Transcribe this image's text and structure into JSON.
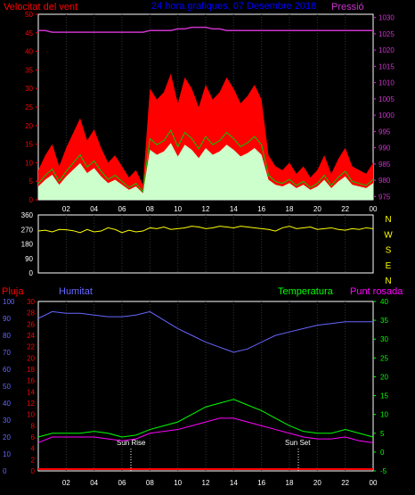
{
  "colors": {
    "wind_speed": "#ff0000",
    "wind_avg": "#00cc00",
    "wind_gust_fill": "#ccffcc",
    "pressure": "#cc33cc",
    "direction": "#ffff00",
    "humidity": "#6666ff",
    "temperature": "#00ff00",
    "dewpoint": "#ff00ff",
    "rain": "#ff0000",
    "frame": "#ffffff",
    "title": "#0000ff"
  },
  "top_panel": {
    "title": "24 hora grafiques, 07 Desembre 2018",
    "left_label": "Velocitat del vent",
    "right_label": "Pressió",
    "left_ticks": [
      "50",
      "45",
      "40",
      "35",
      "30",
      "25",
      "20",
      "15",
      "10",
      "5",
      "0"
    ],
    "right_ticks": [
      "1030",
      "1025",
      "1020",
      "1015",
      "1010",
      "1005",
      "1000",
      "995",
      "990",
      "985",
      "980",
      "975"
    ]
  },
  "middle_panel": {
    "left_ticks": [
      "360",
      "270",
      "180",
      "90",
      "0"
    ],
    "right_letters": [
      "N",
      "W",
      "S",
      "E",
      "N"
    ]
  },
  "bottom_panel": {
    "label_rain": "Pluja",
    "label_humidity": "Humitat",
    "label_temperature": "Temperatura",
    "label_dewpoint": "Punt rosada",
    "humidity_ticks": [
      "100",
      "90",
      "80",
      "70",
      "60",
      "50",
      "40",
      "30",
      "20",
      "10",
      "0"
    ],
    "rain_ticks": [
      "30",
      "28",
      "26",
      "24",
      "22",
      "20",
      "18",
      "16",
      "14",
      "12",
      "10",
      "8",
      "6",
      "4",
      "2",
      "0"
    ],
    "temp_ticks": [
      "40",
      "35",
      "30",
      "25",
      "20",
      "15",
      "10",
      "5",
      "0",
      "-5"
    ],
    "sun_rise": "Sun Rise",
    "sun_set": "Sun Set"
  },
  "x_ticks": [
    "02",
    "04",
    "06",
    "08",
    "10",
    "12",
    "14",
    "16",
    "18",
    "20",
    "22",
    "00"
  ],
  "chart_data": [
    {
      "type": "line",
      "title": "24 hora grafiques, 07 Desembre 2018",
      "x_hours": [
        0,
        0.5,
        1,
        1.5,
        2,
        2.5,
        3,
        3.5,
        4,
        4.5,
        5,
        5.5,
        6,
        6.5,
        7,
        7.5,
        8,
        8.5,
        9,
        9.5,
        10,
        10.5,
        11,
        11.5,
        12,
        12.5,
        13,
        13.5,
        14,
        14.5,
        15,
        15.5,
        16,
        16.5,
        17,
        17.5,
        18,
        18.5,
        19,
        19.5,
        20,
        20.5,
        21,
        21.5,
        22,
        22.5,
        23,
        23.5,
        24
      ],
      "ylim_left": [
        0,
        50
      ],
      "ylim_right": [
        974,
        1031
      ],
      "series": [
        {
          "name": "Velocitat del vent",
          "values": [
            8,
            12,
            15,
            9,
            14,
            18,
            22,
            16,
            19,
            14,
            10,
            12,
            9,
            6,
            8,
            4,
            30,
            27,
            29,
            34,
            26,
            33,
            30,
            25,
            31,
            27,
            29,
            33,
            30,
            26,
            28,
            31,
            27,
            12,
            9,
            8,
            10,
            7,
            9,
            6,
            8,
            12,
            7,
            11,
            14,
            9,
            8,
            7,
            10
          ]
        },
        {
          "name": "Pressió",
          "values": [
            1026,
            1026,
            1025.5,
            1025.5,
            1025.5,
            1025.5,
            1025.5,
            1025.5,
            1025.5,
            1025.5,
            1025.5,
            1025.5,
            1025.5,
            1025.5,
            1025.5,
            1025.5,
            1026,
            1026,
            1026,
            1026,
            1026.5,
            1026.5,
            1027,
            1027,
            1027,
            1026.5,
            1026.5,
            1026,
            1026,
            1026,
            1026,
            1026,
            1026,
            1026,
            1026,
            1026,
            1026,
            1026,
            1026,
            1026,
            1026,
            1026,
            1026,
            1026,
            1026,
            1026,
            1026,
            1026,
            1026
          ]
        }
      ],
      "xlabel": "",
      "ylabel": "Velocitat del vent"
    },
    {
      "type": "line",
      "x_hours": [
        0,
        0.5,
        1,
        1.5,
        2,
        2.5,
        3,
        3.5,
        4,
        4.5,
        5,
        5.5,
        6,
        6.5,
        7,
        7.5,
        8,
        8.5,
        9,
        9.5,
        10,
        10.5,
        11,
        11.5,
        12,
        12.5,
        13,
        13.5,
        14,
        14.5,
        15,
        15.5,
        16,
        16.5,
        17,
        17.5,
        18,
        18.5,
        19,
        19.5,
        20,
        20.5,
        21,
        21.5,
        22,
        22.5,
        23,
        23.5,
        24
      ],
      "ylim": [
        0,
        360
      ],
      "series": [
        {
          "name": "",
          "values": [
            260,
            265,
            255,
            270,
            268,
            262,
            250,
            270,
            255,
            260,
            280,
            270,
            250,
            265,
            255,
            260,
            280,
            275,
            285,
            270,
            275,
            280,
            290,
            285,
            275,
            280,
            290,
            285,
            280,
            290,
            285,
            280,
            275,
            270,
            260,
            280,
            290,
            275,
            280,
            285,
            270,
            275,
            280,
            270,
            265,
            275,
            270,
            280,
            275
          ]
        }
      ]
    },
    {
      "type": "line",
      "x_hours": [
        0,
        1,
        2,
        3,
        4,
        5,
        6,
        7,
        8,
        9,
        10,
        11,
        12,
        13,
        14,
        15,
        16,
        17,
        18,
        19,
        20,
        21,
        22,
        23,
        24
      ],
      "ylim_humidity": [
        0,
        100
      ],
      "ylim_temperature": [
        -5,
        40
      ],
      "series": [
        {
          "name": "Humitat",
          "values": [
            90,
            94,
            93,
            93,
            92,
            91,
            91,
            92,
            94,
            89,
            84,
            80,
            76,
            73,
            70,
            72,
            76,
            80,
            82,
            84,
            86,
            87,
            88,
            88,
            88
          ]
        },
        {
          "name": "Temperatura",
          "values": [
            4,
            5,
            5,
            5,
            5.5,
            5,
            4,
            4.5,
            6,
            7,
            8,
            10,
            12,
            13,
            14,
            12.5,
            11,
            9,
            7,
            5.5,
            5,
            5,
            6,
            5,
            4
          ]
        },
        {
          "name": "Punt rosada",
          "values": [
            2.5,
            4,
            4,
            4,
            4,
            3.5,
            3,
            3.5,
            5,
            5.5,
            6,
            7,
            8,
            9,
            9,
            8,
            7,
            6,
            5,
            4,
            3.5,
            3.5,
            4,
            3,
            2.5
          ]
        },
        {
          "name": "Pluja",
          "values": [
            0,
            0,
            0,
            0,
            0,
            0,
            0,
            0,
            0,
            0,
            0,
            0,
            0,
            0,
            0,
            0,
            0,
            0,
            0,
            0,
            0,
            0,
            0,
            0,
            0
          ]
        }
      ]
    }
  ]
}
